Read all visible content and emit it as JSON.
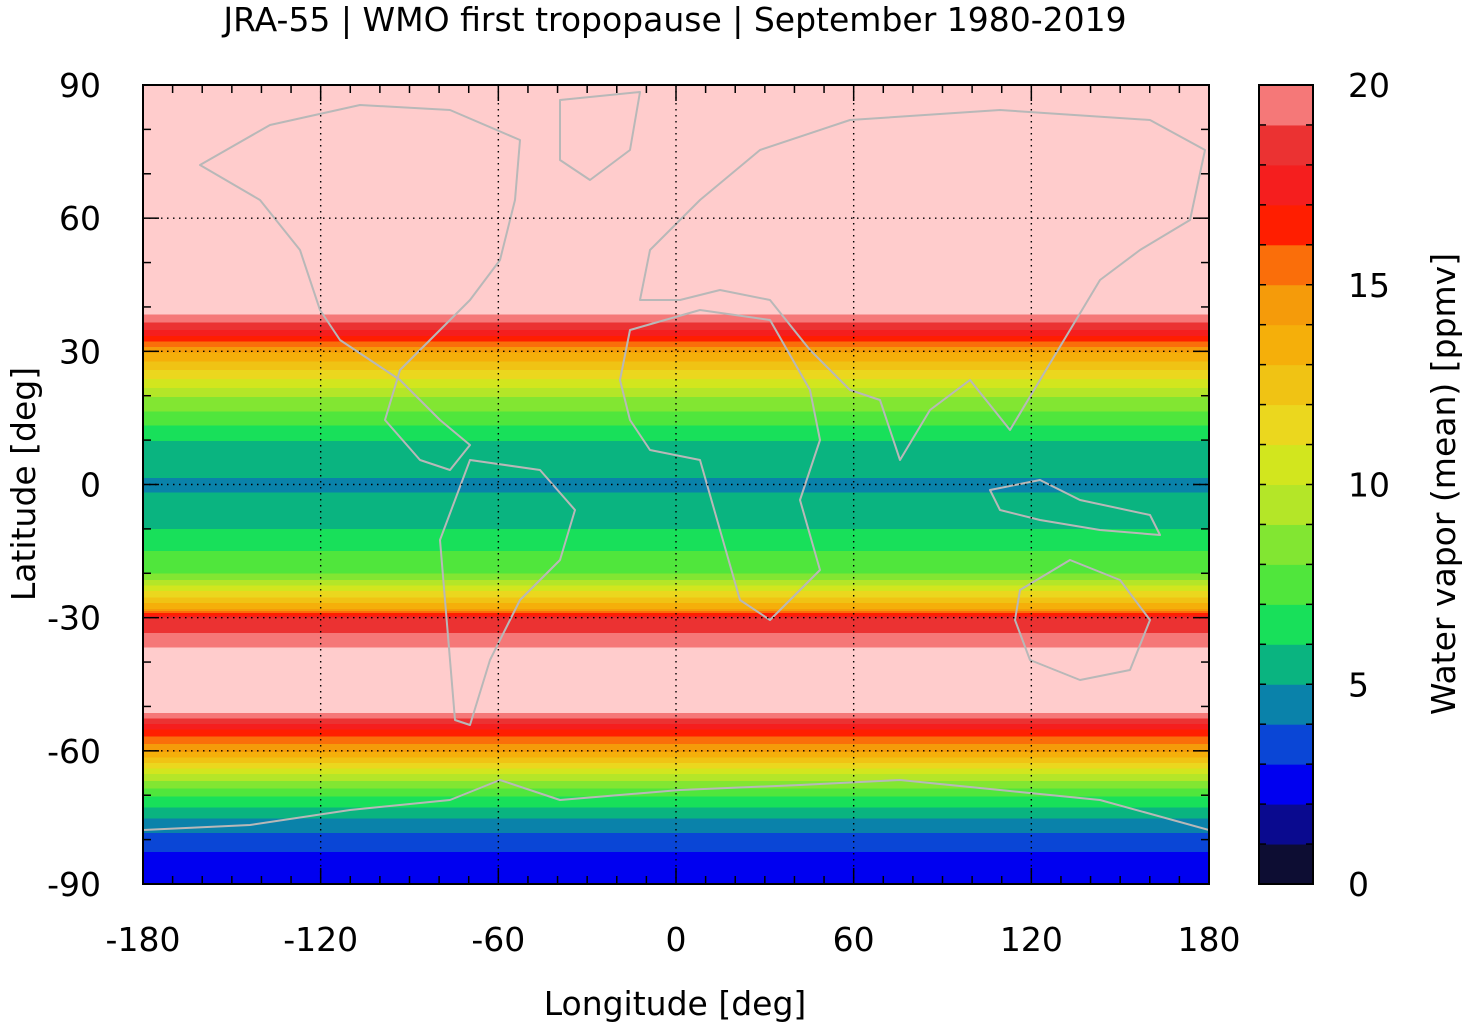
{
  "chart_data": {
    "type": "heatmap",
    "title": "JRA-55 | WMO first tropopause | September 1980-2019",
    "xlabel": "Longitude [deg]",
    "ylabel": "Latitude [deg]",
    "xlim": [
      -180,
      180
    ],
    "ylim": [
      -90,
      90
    ],
    "xticks": [
      -180,
      -120,
      -60,
      0,
      60,
      120,
      180
    ],
    "yticks": [
      -90,
      -60,
      -30,
      0,
      30,
      60,
      90
    ],
    "grid": true,
    "colorbar": {
      "label": "Water vapor (mean) [ppmv]",
      "range": [
        0,
        20
      ],
      "ticks": [
        0,
        5,
        10,
        15,
        20
      ],
      "levels": [
        0,
        1,
        2,
        3,
        4,
        5,
        6,
        7,
        8,
        9,
        10,
        11,
        12,
        13,
        14,
        15,
        16,
        17,
        18,
        19,
        20
      ],
      "colors": [
        "#0d0d33",
        "#0a0a8f",
        "#0000f0",
        "#0a46d6",
        "#0a82aa",
        "#0ab480",
        "#18e05a",
        "#50e63c",
        "#82e632",
        "#b4e628",
        "#d2e61e",
        "#ebd71e",
        "#f0c314",
        "#f5af0a",
        "#f59b0a",
        "#fa6e0a",
        "#ff1e00",
        "#f51e1e",
        "#eb3232",
        "#f57878"
      ],
      "over_color": "#ffcccc"
    },
    "field_profile": {
      "lat": [
        -90,
        -85,
        -80,
        -75,
        -70,
        -65,
        -60,
        -55,
        -50,
        -40,
        -30,
        -28,
        -20,
        -10,
        0,
        10,
        20,
        30,
        35,
        40,
        50,
        90
      ],
      "water_vapor_ppmv": [
        2.5,
        2.5,
        3.5,
        5,
        7,
        10,
        14,
        17,
        21,
        21,
        18,
        14,
        8,
        6,
        4.8,
        6,
        9,
        14,
        18,
        21,
        21,
        21
      ]
    }
  }
}
